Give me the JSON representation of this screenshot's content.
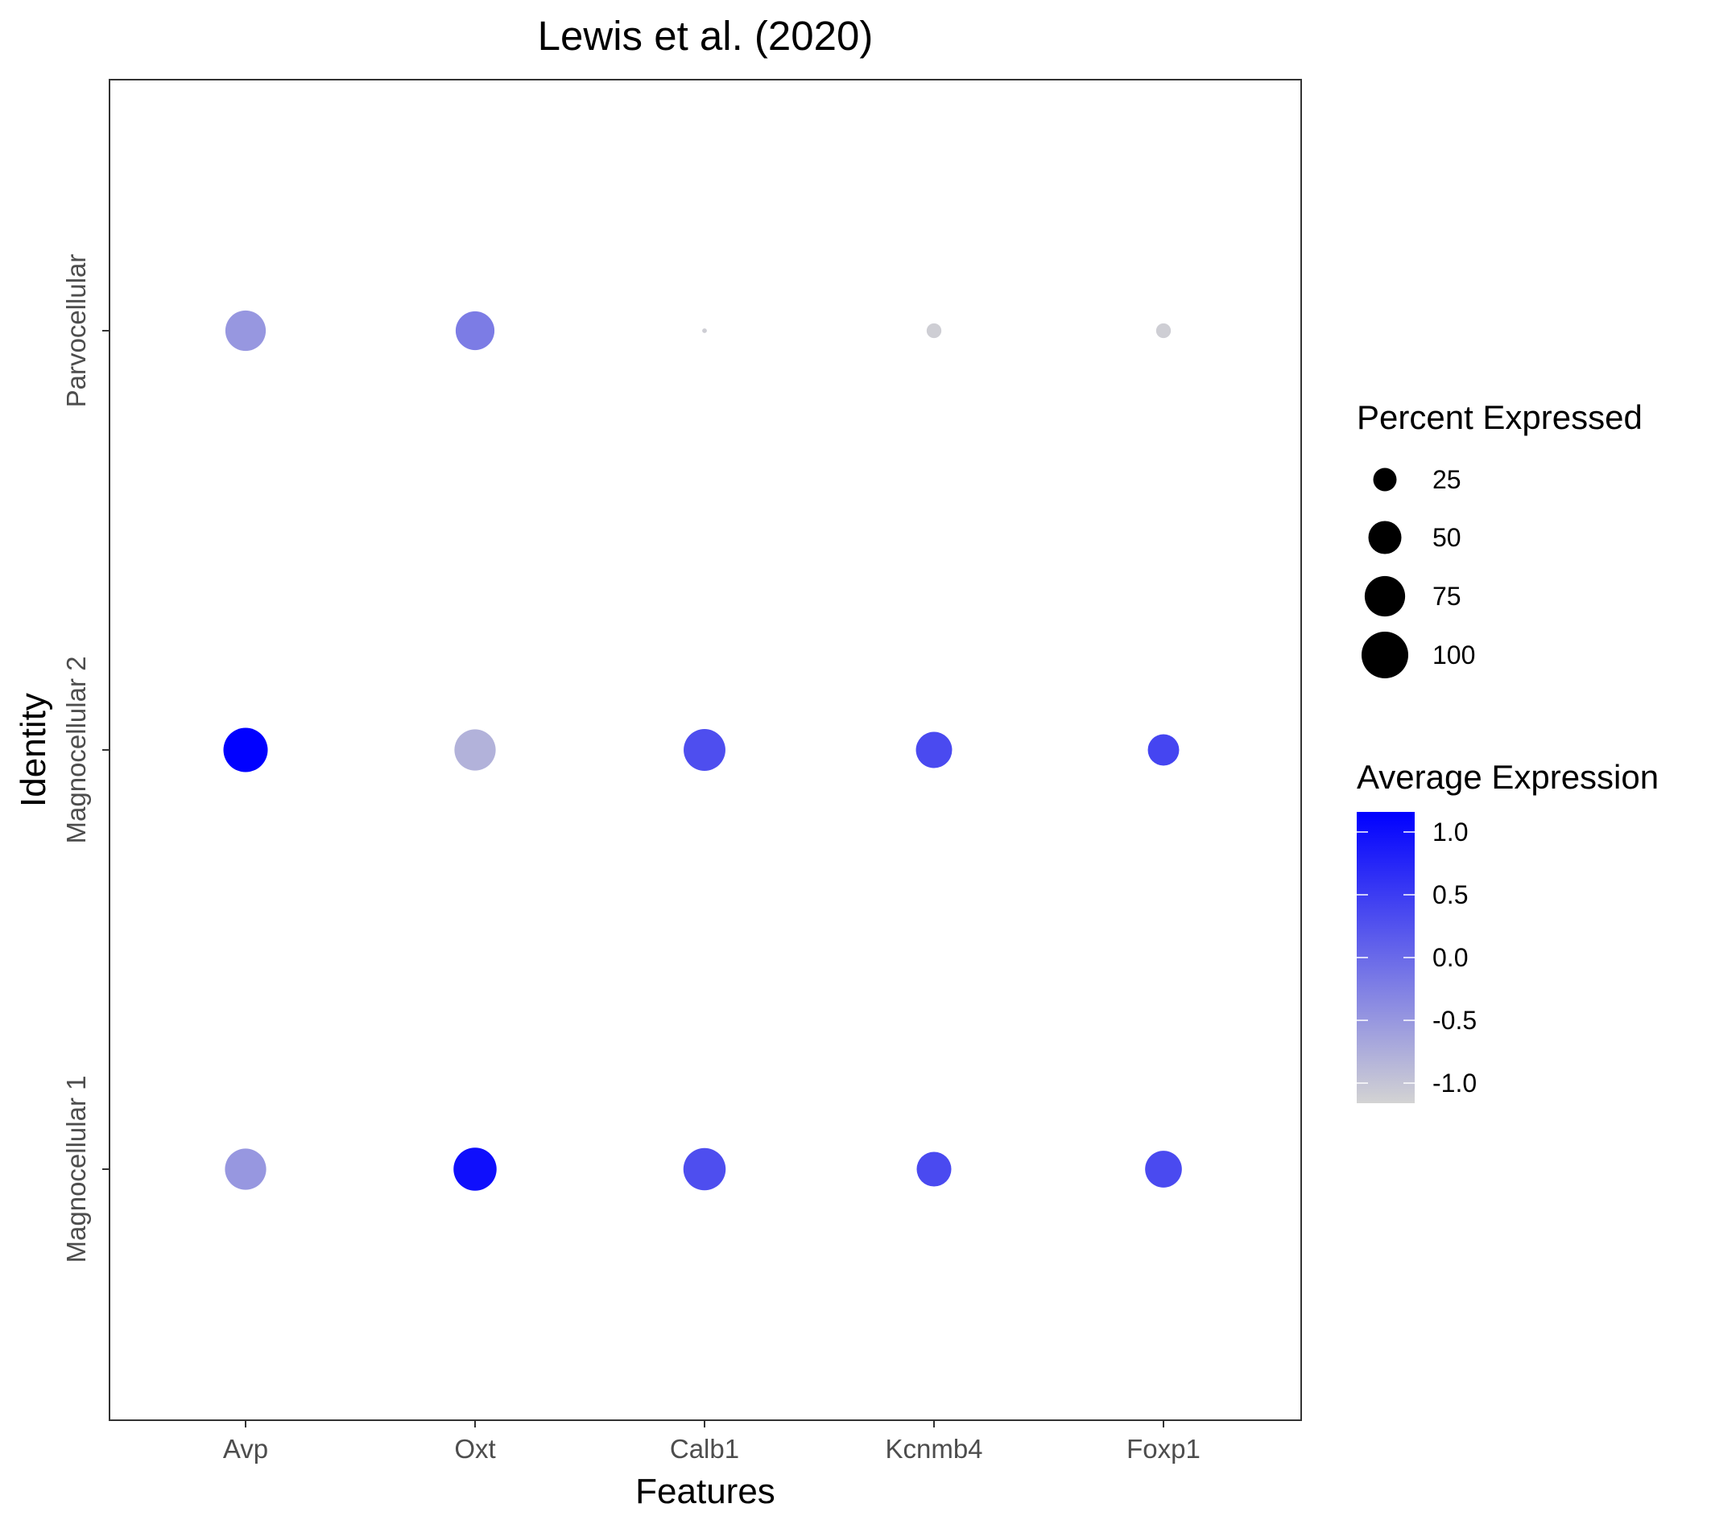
{
  "chart_data": {
    "type": "scatter",
    "subtype": "dot-plot",
    "title": "Lewis et al. (2020)",
    "xlabel": "Features",
    "ylabel": "Identity",
    "features": [
      "Avp",
      "Oxt",
      "Calb1",
      "Kcnmb4",
      "Foxp1"
    ],
    "identities": [
      "Magnocellular 1",
      "Magnocellular 2",
      "Parvocellular"
    ],
    "grid": false,
    "points": [
      {
        "identity": "Parvocellular",
        "feature": "Avp",
        "pct_expressed": 75,
        "avg_expression": -0.5
      },
      {
        "identity": "Parvocellular",
        "feature": "Oxt",
        "pct_expressed": 69,
        "avg_expression": -0.2
      },
      {
        "identity": "Parvocellular",
        "feature": "Calb1",
        "pct_expressed": 1,
        "avg_expression": -1.1
      },
      {
        "identity": "Parvocellular",
        "feature": "Kcnmb4",
        "pct_expressed": 10,
        "avg_expression": -1.1
      },
      {
        "identity": "Parvocellular",
        "feature": "Foxp1",
        "pct_expressed": 10,
        "avg_expression": -1.1
      },
      {
        "identity": "Magnocellular 2",
        "feature": "Avp",
        "pct_expressed": 90,
        "avg_expression": 1.15
      },
      {
        "identity": "Magnocellular 2",
        "feature": "Oxt",
        "pct_expressed": 78,
        "avg_expression": -0.8
      },
      {
        "identity": "Magnocellular 2",
        "feature": "Calb1",
        "pct_expressed": 80,
        "avg_expression": 0.3
      },
      {
        "identity": "Magnocellular 2",
        "feature": "Kcnmb4",
        "pct_expressed": 60,
        "avg_expression": 0.35
      },
      {
        "identity": "Magnocellular 2",
        "feature": "Foxp1",
        "pct_expressed": 45,
        "avg_expression": 0.4
      },
      {
        "identity": "Magnocellular 1",
        "feature": "Avp",
        "pct_expressed": 78,
        "avg_expression": -0.5
      },
      {
        "identity": "Magnocellular 1",
        "feature": "Oxt",
        "pct_expressed": 85,
        "avg_expression": 1.0
      },
      {
        "identity": "Magnocellular 1",
        "feature": "Calb1",
        "pct_expressed": 82,
        "avg_expression": 0.3
      },
      {
        "identity": "Magnocellular 1",
        "feature": "Kcnmb4",
        "pct_expressed": 55,
        "avg_expression": 0.35
      },
      {
        "identity": "Magnocellular 1",
        "feature": "Foxp1",
        "pct_expressed": 62,
        "avg_expression": 0.35
      }
    ],
    "legend": {
      "placement": "right",
      "size": {
        "title": "Percent Expressed",
        "values": [
          25,
          50,
          75,
          100
        ]
      },
      "color": {
        "title": "Average Expression",
        "ticks": [
          1.0,
          0.5,
          0.0,
          -0.5,
          -1.0
        ],
        "tick_labels": [
          "1.0",
          "0.5",
          "0.0",
          "-0.5",
          "-1.0"
        ],
        "range": [
          -1.16,
          1.16
        ],
        "low_color": "#d3d3d3",
        "high_color": "#0000ff"
      }
    }
  }
}
